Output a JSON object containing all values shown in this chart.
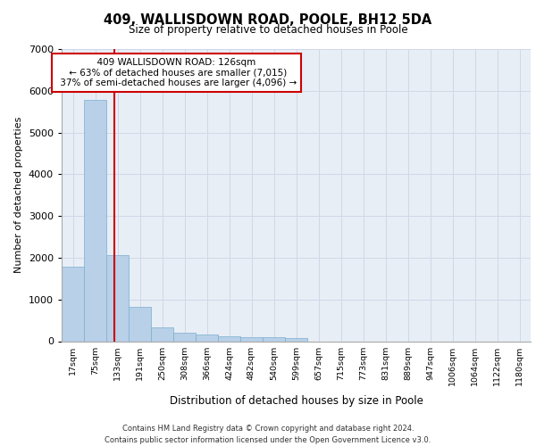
{
  "title1": "409, WALLISDOWN ROAD, POOLE, BH12 5DA",
  "title2": "Size of property relative to detached houses in Poole",
  "xlabel": "Distribution of detached houses by size in Poole",
  "ylabel": "Number of detached properties",
  "bins": [
    "17sqm",
    "75sqm",
    "133sqm",
    "191sqm",
    "250sqm",
    "308sqm",
    "366sqm",
    "424sqm",
    "482sqm",
    "540sqm",
    "599sqm",
    "657sqm",
    "715sqm",
    "773sqm",
    "831sqm",
    "889sqm",
    "947sqm",
    "1006sqm",
    "1064sqm",
    "1122sqm",
    "1180sqm"
  ],
  "bar_values": [
    1780,
    5780,
    2060,
    820,
    340,
    200,
    170,
    110,
    100,
    95,
    75,
    0,
    0,
    0,
    0,
    0,
    0,
    0,
    0,
    0,
    0
  ],
  "bar_color": "#b8d0e8",
  "bar_edge_color": "#7aaed0",
  "grid_color": "#d0d8e8",
  "bg_color": "#e8eef5",
  "vline_x_index": 1.85,
  "vline_color": "#cc0000",
  "annotation_text": "  409 WALLISDOWN ROAD: 126sqm  \n ← 63% of detached houses are smaller (7,015)\n 37% of semi-detached houses are larger (4,096) →",
  "annotation_box_color": "#ffffff",
  "annotation_box_edge_color": "#cc0000",
  "ylim": [
    0,
    7000
  ],
  "yticks": [
    0,
    1000,
    2000,
    3000,
    4000,
    5000,
    6000,
    7000
  ],
  "footer1": "Contains HM Land Registry data © Crown copyright and database right 2024.",
  "footer2": "Contains public sector information licensed under the Open Government Licence v3.0."
}
